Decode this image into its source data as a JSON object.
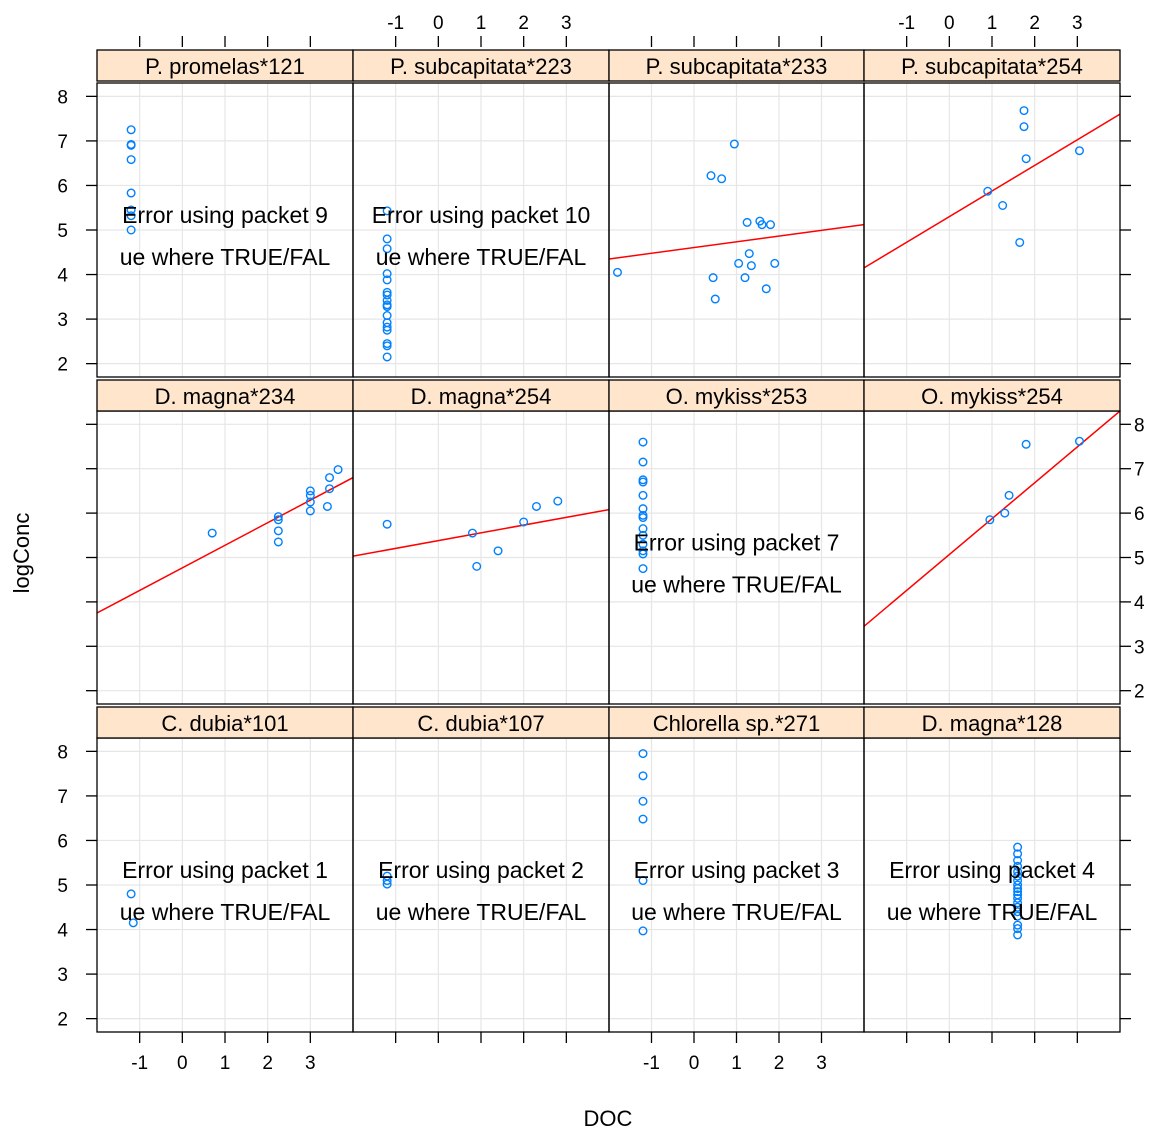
{
  "chart_data": {
    "type": "scatter",
    "layout": "trellis 4 columns x 3 rows",
    "xlabel": "DOC",
    "ylabel": "logConc",
    "xlim": [
      -2,
      4
    ],
    "ylim": [
      1.7,
      8.3
    ],
    "x_ticks": [
      -1,
      0,
      1,
      2,
      3
    ],
    "y_ticks": [
      2,
      3,
      4,
      5,
      6,
      7,
      8
    ],
    "grid": true,
    "colors": {
      "points": "#0080ff",
      "fit_line": "#ff0000",
      "strip": "#ffe5cc",
      "grid": "#e6e6e6"
    },
    "panels": [
      {
        "title": "P. promelas*121",
        "points": [
          [
            -1.2,
            7.25
          ],
          [
            -1.2,
            6.92
          ],
          [
            -1.2,
            6.9
          ],
          [
            -1.2,
            6.58
          ],
          [
            -1.2,
            5.83
          ],
          [
            -1.2,
            5.45
          ],
          [
            -1.2,
            5.32
          ],
          [
            -1.2,
            5.0
          ]
        ],
        "line": null,
        "error": [
          "Error using packet 9",
          "ue where TRUE/FAL"
        ]
      },
      {
        "title": "P. subcapitata*223",
        "points": [
          [
            -1.2,
            5.43
          ],
          [
            -1.2,
            4.8
          ],
          [
            -1.2,
            4.58
          ],
          [
            -1.2,
            4.02
          ],
          [
            -1.2,
            3.88
          ],
          [
            -1.2,
            3.6
          ],
          [
            -1.2,
            3.54
          ],
          [
            -1.2,
            3.42
          ],
          [
            -1.2,
            3.32
          ],
          [
            -1.2,
            3.28
          ],
          [
            -1.2,
            3.08
          ],
          [
            -1.2,
            2.92
          ],
          [
            -1.2,
            2.82
          ],
          [
            -1.2,
            2.75
          ],
          [
            -1.2,
            2.45
          ],
          [
            -1.2,
            2.4
          ],
          [
            -1.2,
            2.15
          ]
        ],
        "line": null,
        "error": [
          "Error using packet 10",
          "ue where TRUE/FAL"
        ]
      },
      {
        "title": "P. subcapitata*233",
        "points": [
          [
            -1.8,
            4.05
          ],
          [
            0.4,
            6.22
          ],
          [
            0.45,
            3.93
          ],
          [
            0.5,
            3.45
          ],
          [
            0.65,
            6.15
          ],
          [
            0.95,
            6.93
          ],
          [
            1.05,
            4.25
          ],
          [
            1.2,
            3.93
          ],
          [
            1.25,
            5.17
          ],
          [
            1.3,
            4.47
          ],
          [
            1.35,
            4.2
          ],
          [
            1.55,
            5.2
          ],
          [
            1.6,
            5.12
          ],
          [
            1.7,
            3.68
          ],
          [
            1.8,
            5.12
          ],
          [
            1.9,
            4.25
          ]
        ],
        "line": [
          [
            -2,
            4.35
          ],
          [
            4,
            5.12
          ]
        ],
        "error": null
      },
      {
        "title": "P. subcapitata*254",
        "points": [
          [
            0.9,
            5.87
          ],
          [
            1.25,
            5.55
          ],
          [
            1.65,
            4.72
          ],
          [
            1.75,
            7.68
          ],
          [
            1.75,
            7.32
          ],
          [
            1.8,
            6.6
          ],
          [
            3.05,
            6.78
          ]
        ],
        "line": [
          [
            -2,
            4.15
          ],
          [
            4,
            7.6
          ]
        ],
        "error": null
      },
      {
        "title": "D. magna*234",
        "points": [
          [
            0.7,
            5.55
          ],
          [
            2.25,
            5.92
          ],
          [
            2.25,
            5.85
          ],
          [
            2.25,
            5.6
          ],
          [
            2.25,
            5.35
          ],
          [
            3.0,
            6.5
          ],
          [
            3.0,
            6.4
          ],
          [
            3.0,
            6.25
          ],
          [
            3.0,
            6.05
          ],
          [
            3.4,
            6.15
          ],
          [
            3.45,
            6.55
          ],
          [
            3.45,
            6.8
          ],
          [
            3.65,
            6.98
          ]
        ],
        "line": [
          [
            -2,
            3.75
          ],
          [
            4,
            6.8
          ]
        ],
        "error": null
      },
      {
        "title": "D. magna*254",
        "points": [
          [
            -1.2,
            5.75
          ],
          [
            0.8,
            5.55
          ],
          [
            0.9,
            4.8
          ],
          [
            1.4,
            5.15
          ],
          [
            2.0,
            5.8
          ],
          [
            2.3,
            6.15
          ],
          [
            2.8,
            6.27
          ]
        ],
        "line": [
          [
            -2,
            5.03
          ],
          [
            4,
            6.08
          ]
        ],
        "error": null
      },
      {
        "title": "O. mykiss*253",
        "points": [
          [
            -1.2,
            7.6
          ],
          [
            -1.2,
            7.15
          ],
          [
            -1.2,
            6.75
          ],
          [
            -1.2,
            6.7
          ],
          [
            -1.2,
            6.4
          ],
          [
            -1.2,
            6.1
          ],
          [
            -1.2,
            5.95
          ],
          [
            -1.2,
            5.9
          ],
          [
            -1.2,
            5.65
          ],
          [
            -1.2,
            5.5
          ],
          [
            -1.2,
            5.3
          ],
          [
            -1.2,
            5.15
          ],
          [
            -1.2,
            5.08
          ],
          [
            -1.2,
            4.75
          ]
        ],
        "line": null,
        "error": [
          "Error using packet 7",
          "ue where TRUE/FAL"
        ]
      },
      {
        "title": "O. mykiss*254",
        "points": [
          [
            0.95,
            5.85
          ],
          [
            1.3,
            6.0
          ],
          [
            1.4,
            6.4
          ],
          [
            1.8,
            7.55
          ],
          [
            3.05,
            7.62
          ]
        ],
        "line": [
          [
            -2,
            3.45
          ],
          [
            4,
            8.3
          ]
        ],
        "error": null
      },
      {
        "title": "C. dubia*101",
        "points": [
          [
            -1.2,
            4.8
          ],
          [
            -1.15,
            4.15
          ]
        ],
        "line": null,
        "error": [
          "Error using packet 1",
          "ue where TRUE/FAL"
        ]
      },
      {
        "title": "C. dubia*107",
        "points": [
          [
            -1.2,
            5.2
          ],
          [
            -1.2,
            5.1
          ],
          [
            -1.2,
            5.02
          ]
        ],
        "line": null,
        "error": [
          "Error using packet 2",
          "ue where TRUE/FAL"
        ]
      },
      {
        "title": "Chlorella sp.*271",
        "points": [
          [
            -1.2,
            7.95
          ],
          [
            -1.2,
            7.45
          ],
          [
            -1.2,
            6.88
          ],
          [
            -1.2,
            6.48
          ],
          [
            -1.2,
            5.1
          ],
          [
            -1.2,
            3.97
          ]
        ],
        "line": null,
        "error": [
          "Error using packet 3",
          "ue where TRUE/FAL"
        ]
      },
      {
        "title": "D. magna*128",
        "points": [
          [
            1.6,
            5.85
          ],
          [
            1.6,
            5.7
          ],
          [
            1.6,
            5.55
          ],
          [
            1.6,
            5.42
          ],
          [
            1.6,
            5.3
          ],
          [
            1.6,
            5.2
          ],
          [
            1.6,
            5.1
          ],
          [
            1.6,
            5.0
          ],
          [
            1.6,
            4.92
          ],
          [
            1.6,
            4.85
          ],
          [
            1.6,
            4.78
          ],
          [
            1.6,
            4.7
          ],
          [
            1.6,
            4.6
          ],
          [
            1.6,
            4.5
          ],
          [
            1.6,
            4.4
          ],
          [
            1.6,
            4.3
          ],
          [
            1.6,
            4.1
          ],
          [
            1.6,
            4.02
          ],
          [
            1.6,
            3.88
          ]
        ],
        "line": null,
        "error": [
          "Error using packet 4",
          "ue where TRUE/FAL"
        ]
      }
    ]
  }
}
